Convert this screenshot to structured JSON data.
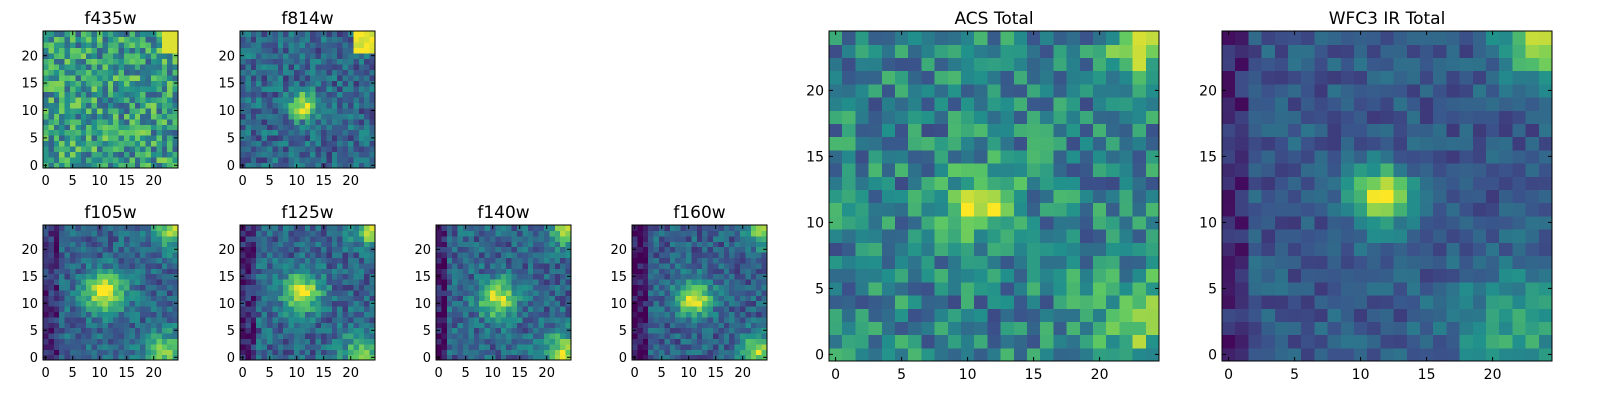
{
  "figure": {
    "cmap": [
      "#440154",
      "#3b528b",
      "#21918c",
      "#5ec962",
      "#fde725"
    ]
  },
  "chart_data": [
    {
      "type": "heatmap",
      "title": "f435w",
      "xticks": [
        "0",
        "5",
        "10",
        "15",
        "20"
      ],
      "yticks": [
        "0",
        "5",
        "10",
        "15",
        "20"
      ],
      "xlim": [
        -0.5,
        24.5
      ],
      "ylim": [
        -0.5,
        24.5
      ],
      "grid": false
    },
    {
      "type": "heatmap",
      "title": "f814w",
      "xticks": [
        "0",
        "5",
        "10",
        "15",
        "20"
      ],
      "yticks": [
        "0",
        "5",
        "10",
        "15",
        "20"
      ],
      "xlim": [
        -0.5,
        24.5
      ],
      "ylim": [
        -0.5,
        24.5
      ],
      "grid": false
    },
    {
      "type": "heatmap",
      "title": "f105w",
      "xticks": [
        "0",
        "5",
        "10",
        "15",
        "20"
      ],
      "yticks": [
        "0",
        "5",
        "10",
        "15",
        "20"
      ],
      "xlim": [
        -0.5,
        24.5
      ],
      "ylim": [
        -0.5,
        24.5
      ],
      "grid": false
    },
    {
      "type": "heatmap",
      "title": "f125w",
      "xticks": [
        "0",
        "5",
        "10",
        "15",
        "20"
      ],
      "yticks": [
        "0",
        "5",
        "10",
        "15",
        "20"
      ],
      "xlim": [
        -0.5,
        24.5
      ],
      "ylim": [
        -0.5,
        24.5
      ],
      "grid": false
    },
    {
      "type": "heatmap",
      "title": "f140w",
      "xticks": [
        "0",
        "5",
        "10",
        "15",
        "20"
      ],
      "yticks": [
        "0",
        "5",
        "10",
        "15",
        "20"
      ],
      "xlim": [
        -0.5,
        24.5
      ],
      "ylim": [
        -0.5,
        24.5
      ],
      "grid": false
    },
    {
      "type": "heatmap",
      "title": "f160w",
      "xticks": [
        "0",
        "5",
        "10",
        "15",
        "20"
      ],
      "yticks": [
        "0",
        "5",
        "10",
        "15",
        "20"
      ],
      "xlim": [
        -0.5,
        24.5
      ],
      "ylim": [
        -0.5,
        24.5
      ],
      "grid": false
    },
    {
      "type": "heatmap",
      "title": "ACS Total",
      "xticks": [
        "0",
        "5",
        "10",
        "15",
        "20"
      ],
      "yticks": [
        "0",
        "5",
        "10",
        "15",
        "20"
      ],
      "xlim": [
        -0.5,
        24.5
      ],
      "ylim": [
        -0.5,
        24.5
      ],
      "grid": false
    },
    {
      "type": "heatmap",
      "title": "WFC3 IR Total",
      "xticks": [
        "0",
        "5",
        "10",
        "15",
        "20"
      ],
      "yticks": [
        "0",
        "5",
        "10",
        "15",
        "20"
      ],
      "xlim": [
        -0.5,
        24.5
      ],
      "ylim": [
        -0.5,
        24.5
      ],
      "grid": false
    }
  ]
}
